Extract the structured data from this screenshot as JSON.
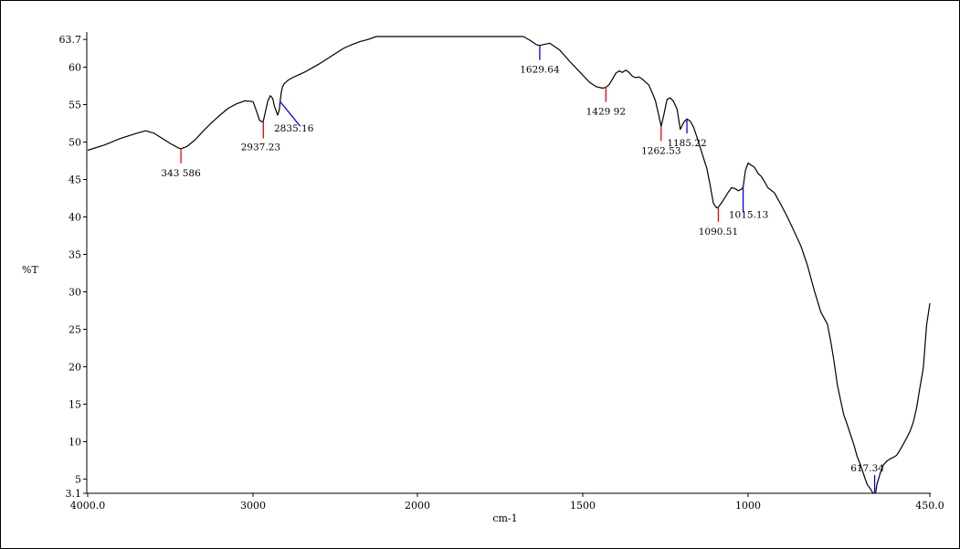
{
  "chart_data": {
    "type": "line",
    "xlabel": "cm-1",
    "ylabel": "%T",
    "x_reversed": true,
    "xlim": [
      4000.0,
      450.0
    ],
    "ylim": [
      3.1,
      63.7
    ],
    "grid": false,
    "legend": "none",
    "x_tick_labels": [
      "4000.0",
      "3000",
      "2000",
      "1500",
      "1000",
      "450.0"
    ],
    "x_tick_values": [
      4000,
      3000,
      2000,
      1500,
      1000,
      450
    ],
    "y_tick_labels": [
      "63.7",
      "60",
      "55",
      "50",
      "45",
      "40",
      "35",
      "30",
      "25",
      "20",
      "15",
      "10",
      "5",
      "3.1"
    ],
    "y_tick_values": [
      63.7,
      60,
      55,
      50,
      45,
      40,
      35,
      30,
      25,
      20,
      15,
      10,
      5,
      3.1
    ],
    "series": [
      {
        "color": "#000000",
        "x": [
          4000,
          3900,
          3800,
          3700,
          3650,
          3600,
          3550,
          3500,
          3450,
          3436,
          3400,
          3350,
          3300,
          3250,
          3200,
          3150,
          3100,
          3050,
          3000,
          2980,
          2960,
          2945,
          2937,
          2925,
          2910,
          2895,
          2880,
          2870,
          2860,
          2850,
          2840,
          2835,
          2828,
          2820,
          2810,
          2790,
          2760,
          2720,
          2680,
          2640,
          2600,
          2550,
          2500,
          2450,
          2400,
          2350,
          2300,
          2250,
          2200,
          2150,
          2100,
          2050,
          2000,
          1950,
          1900,
          1850,
          1800,
          1750,
          1700,
          1680,
          1660,
          1640,
          1630,
          1600,
          1570,
          1540,
          1510,
          1480,
          1460,
          1440,
          1430,
          1420,
          1410,
          1400,
          1390,
          1380,
          1370,
          1360,
          1350,
          1340,
          1330,
          1320,
          1300,
          1290,
          1280,
          1270,
          1263,
          1255,
          1245,
          1235,
          1225,
          1215,
          1205,
          1195,
          1185,
          1175,
          1165,
          1155,
          1145,
          1135,
          1125,
          1115,
          1105,
          1095,
          1090,
          1080,
          1070,
          1060,
          1050,
          1040,
          1030,
          1020,
          1015,
          1008,
          1000,
          990,
          980,
          970,
          960,
          950,
          940,
          920,
          900,
          880,
          860,
          840,
          820,
          800,
          780,
          760,
          750,
          740,
          730,
          720,
          710,
          700,
          690,
          680,
          670,
          660,
          650,
          640,
          630,
          625,
          620,
          617,
          614,
          610,
          600,
          590,
          580,
          570,
          560,
          550,
          540,
          530,
          520,
          510,
          500,
          490,
          480,
          470,
          460,
          450
        ],
        "y": [
          48.9,
          49.6,
          50.5,
          51.2,
          51.5,
          51.2,
          50.5,
          49.8,
          49.2,
          49.1,
          49.4,
          50.3,
          51.5,
          52.6,
          53.6,
          54.5,
          55.1,
          55.5,
          55.4,
          54.2,
          52.9,
          52.7,
          52.8,
          54.0,
          55.5,
          56.2,
          55.8,
          54.8,
          54.2,
          53.6,
          54.3,
          55.4,
          56.7,
          57.4,
          57.8,
          58.2,
          58.6,
          59.0,
          59.4,
          59.9,
          60.4,
          61.1,
          61.8,
          62.5,
          63.0,
          63.4,
          63.7,
          64.1,
          64.4,
          64.7,
          64.9,
          65.1,
          65.2,
          65.3,
          65.3,
          65.3,
          65.3,
          65.2,
          64.8,
          64.3,
          63.6,
          63.0,
          62.9,
          63.2,
          62.3,
          60.8,
          59.4,
          58.0,
          57.4,
          57.2,
          57.3,
          57.7,
          58.4,
          59.2,
          59.5,
          59.3,
          59.6,
          59.3,
          58.8,
          58.6,
          58.7,
          58.4,
          57.6,
          56.6,
          55.5,
          53.5,
          52.1,
          53.6,
          55.7,
          55.9,
          55.4,
          54.4,
          51.7,
          52.6,
          53.1,
          52.8,
          52.0,
          50.7,
          49.3,
          47.9,
          46.5,
          44.3,
          41.8,
          41.2,
          41.3,
          41.9,
          42.6,
          43.3,
          43.9,
          43.8,
          43.5,
          43.7,
          44.0,
          46.2,
          47.2,
          46.9,
          46.6,
          45.8,
          45.4,
          44.7,
          43.9,
          43.2,
          41.6,
          39.9,
          38.0,
          36.1,
          33.5,
          30.2,
          27.3,
          25.7,
          23.4,
          20.7,
          17.6,
          15.5,
          13.5,
          12.3,
          10.9,
          9.6,
          8.0,
          6.9,
          5.6,
          4.3,
          3.7,
          3.3,
          3.1,
          3.1,
          3.2,
          4.3,
          5.8,
          6.9,
          7.4,
          7.7,
          7.9,
          8.2,
          8.9,
          9.7,
          10.5,
          11.4,
          12.6,
          14.5,
          17.2,
          19.8,
          25.5,
          28.5
        ]
      }
    ],
    "peaks": [
      {
        "label": "343 586",
        "x": 3436,
        "color": "#ff0000"
      },
      {
        "label": "2937.23",
        "x": 2937,
        "color": "#ff0000"
      },
      {
        "label": "2835.16",
        "x": 2835,
        "color": "#0000ff"
      },
      {
        "label": "1629.64",
        "x": 1630,
        "color": "#0000ff"
      },
      {
        "label": "1429 92",
        "x": 1430,
        "color": "#ff0000"
      },
      {
        "label": "1262.53",
        "x": 1263,
        "color": "#ff0000"
      },
      {
        "label": "1185.22",
        "x": 1185,
        "color": "#0000ff"
      },
      {
        "label": "1090.51",
        "x": 1090,
        "color": "#ff0000"
      },
      {
        "label": "1015.13",
        "x": 1015,
        "color": "#0000ff"
      },
      {
        "label": "617.34",
        "x": 617,
        "color": "#0000ff"
      }
    ]
  }
}
